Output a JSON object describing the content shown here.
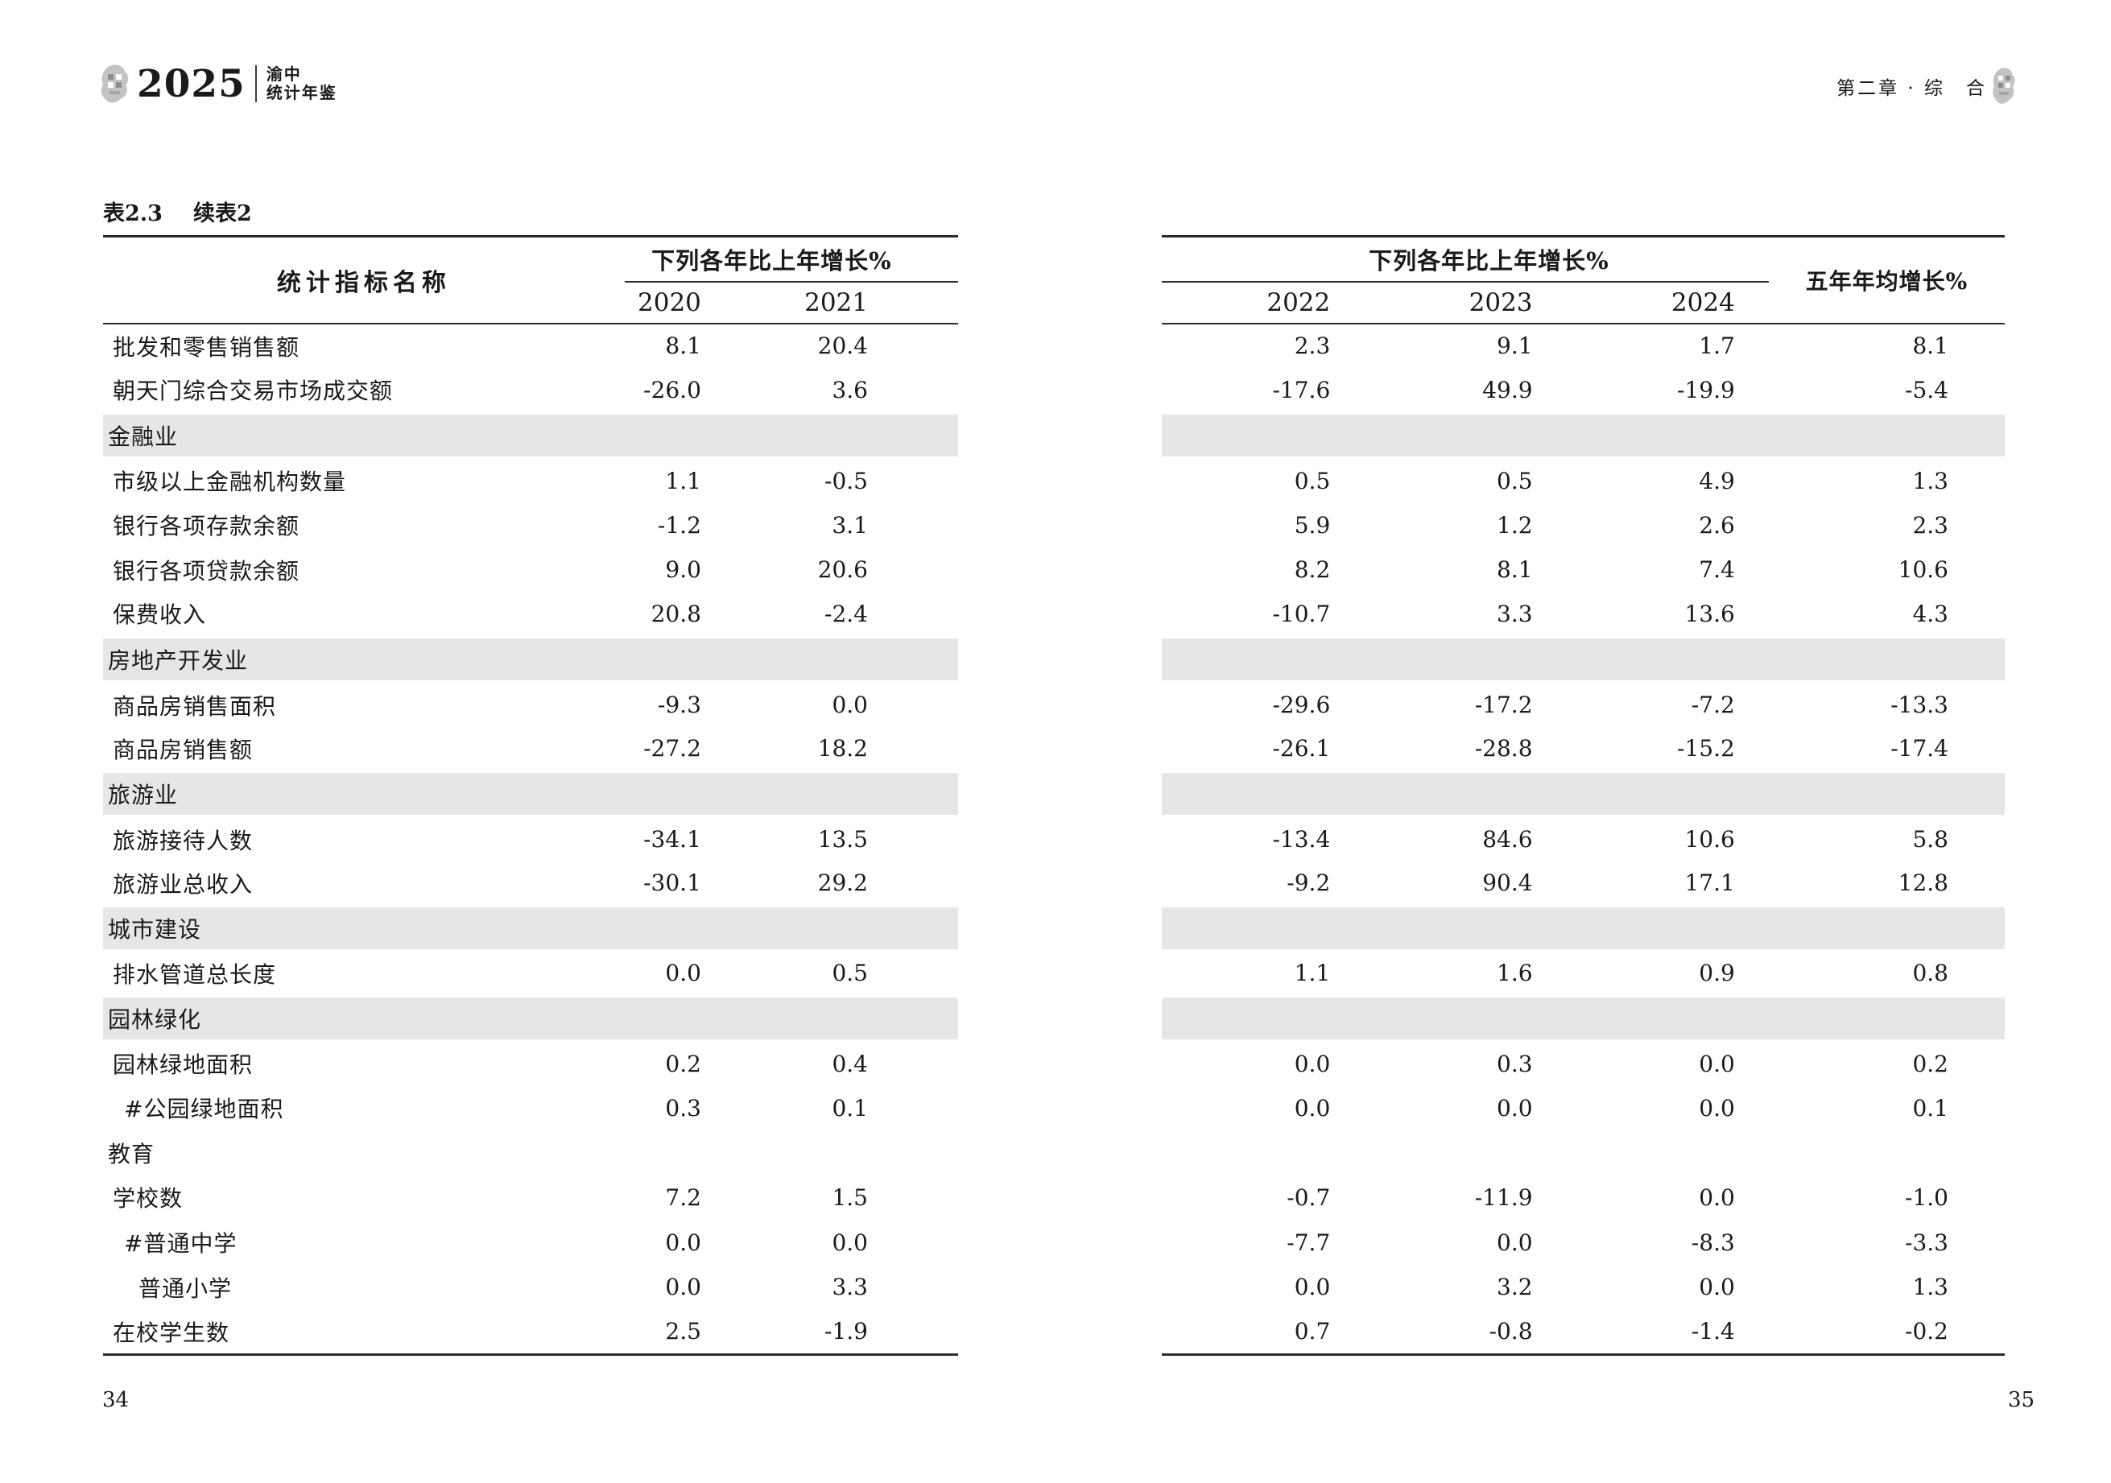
{
  "page_header": {
    "year": "2025",
    "publication_line1": "渝中",
    "publication_line2": "统计年鉴",
    "chapter": "第二章 · 综　合"
  },
  "table": {
    "title_label": "表2.3",
    "title_continuation": "续表2",
    "left": {
      "name_header": "统计指标名称",
      "span_header": "下列各年比上年增长%",
      "years": [
        "2020",
        "2021"
      ]
    },
    "right": {
      "span_header": "下列各年比上年增长%",
      "years": [
        "2022",
        "2023",
        "2024"
      ],
      "avg_header": "五年年均增长%"
    },
    "rows": [
      {
        "name": "批发和零售销售额",
        "indent": 0,
        "section": false,
        "values": [
          "8.1",
          "20.4",
          "2.3",
          "9.1",
          "1.7",
          "8.1"
        ]
      },
      {
        "name": "朝天门综合交易市场成交额",
        "indent": 0,
        "section": false,
        "values": [
          "-26.0",
          "3.6",
          "-17.6",
          "49.9",
          "-19.9",
          "-5.4"
        ]
      },
      {
        "name": "金融业",
        "indent": 0,
        "section": true,
        "shaded": true
      },
      {
        "name": "市级以上金融机构数量",
        "indent": 0,
        "section": false,
        "values": [
          "1.1",
          "-0.5",
          "0.5",
          "0.5",
          "4.9",
          "1.3"
        ]
      },
      {
        "name": "银行各项存款余额",
        "indent": 0,
        "section": false,
        "values": [
          "-1.2",
          "3.1",
          "5.9",
          "1.2",
          "2.6",
          "2.3"
        ]
      },
      {
        "name": "银行各项贷款余额",
        "indent": 0,
        "section": false,
        "values": [
          "9.0",
          "20.6",
          "8.2",
          "8.1",
          "7.4",
          "10.6"
        ]
      },
      {
        "name": "保费收入",
        "indent": 0,
        "section": false,
        "values": [
          "20.8",
          "-2.4",
          "-10.7",
          "3.3",
          "13.6",
          "4.3"
        ]
      },
      {
        "name": "房地产开发业",
        "indent": 0,
        "section": true,
        "shaded": true
      },
      {
        "name": "商品房销售面积",
        "indent": 0,
        "section": false,
        "values": [
          "-9.3",
          "0.0",
          "-29.6",
          "-17.2",
          "-7.2",
          "-13.3"
        ]
      },
      {
        "name": "商品房销售额",
        "indent": 0,
        "section": false,
        "values": [
          "-27.2",
          "18.2",
          "-26.1",
          "-28.8",
          "-15.2",
          "-17.4"
        ]
      },
      {
        "name": "旅游业",
        "indent": 0,
        "section": true,
        "shaded": true
      },
      {
        "name": "旅游接待人数",
        "indent": 0,
        "section": false,
        "values": [
          "-34.1",
          "13.5",
          "-13.4",
          "84.6",
          "10.6",
          "5.8"
        ]
      },
      {
        "name": "旅游业总收入",
        "indent": 0,
        "section": false,
        "values": [
          "-30.1",
          "29.2",
          "-9.2",
          "90.4",
          "17.1",
          "12.8"
        ]
      },
      {
        "name": "城市建设",
        "indent": 0,
        "section": true,
        "shaded": true
      },
      {
        "name": "排水管道总长度",
        "indent": 0,
        "section": false,
        "values": [
          "0.0",
          "0.5",
          "1.1",
          "1.6",
          "0.9",
          "0.8"
        ]
      },
      {
        "name": "园林绿化",
        "indent": 0,
        "section": true,
        "shaded": true
      },
      {
        "name": "园林绿地面积",
        "indent": 0,
        "section": false,
        "values": [
          "0.2",
          "0.4",
          "0.0",
          "0.3",
          "0.0",
          "0.2"
        ]
      },
      {
        "name": "#公园绿地面积",
        "indent": 1,
        "section": false,
        "values": [
          "0.3",
          "0.1",
          "0.0",
          "0.0",
          "0.0",
          "0.1"
        ]
      },
      {
        "name": "教育",
        "indent": 0,
        "section": true,
        "shaded": false
      },
      {
        "name": "学校数",
        "indent": 0,
        "section": false,
        "values": [
          "7.2",
          "1.5",
          "-0.7",
          "-11.9",
          "0.0",
          "-1.0"
        ]
      },
      {
        "name": "#普通中学",
        "indent": 1,
        "section": false,
        "values": [
          "0.0",
          "0.0",
          "-7.7",
          "0.0",
          "-8.3",
          "-3.3"
        ]
      },
      {
        "name": "普通小学",
        "indent": 2,
        "section": false,
        "values": [
          "0.0",
          "3.3",
          "0.0",
          "3.2",
          "0.0",
          "1.3"
        ]
      },
      {
        "name": "在校学生数",
        "indent": 0,
        "section": false,
        "values": [
          "2.5",
          "-1.9",
          "0.7",
          "-0.8",
          "-1.4",
          "-0.2"
        ]
      }
    ]
  },
  "footer": {
    "left_page_number": "34",
    "right_page_number": "35"
  },
  "colors": {
    "section_band": "#e6e6e6",
    "rule": "#2b2b2b",
    "text": "#1a1a1a"
  }
}
